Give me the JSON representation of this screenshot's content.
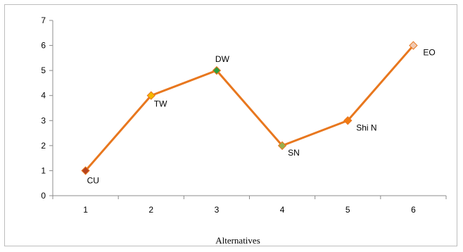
{
  "chart_data": {
    "type": "line",
    "title": "",
    "xlabel": "Alternatives",
    "ylabel": "",
    "x": [
      1,
      2,
      3,
      4,
      5,
      6
    ],
    "xlim": [
      0.5,
      6.5
    ],
    "ylim": [
      0,
      7
    ],
    "yticks": [
      0,
      1,
      2,
      3,
      4,
      5,
      6,
      7
    ],
    "grid": false,
    "legend": "none",
    "line_color": "#E8771E",
    "series": [
      {
        "values": [
          1,
          4,
          5,
          2,
          3,
          6
        ],
        "labels": [
          "CU",
          "TW",
          "DW",
          "SN",
          "Shi N",
          "EO"
        ],
        "marker_colors": [
          "#B5431E",
          "#F5B800",
          "#2E9E3E",
          "#9AAE4E",
          "#F27A12",
          "#F0C9B2"
        ]
      }
    ]
  }
}
